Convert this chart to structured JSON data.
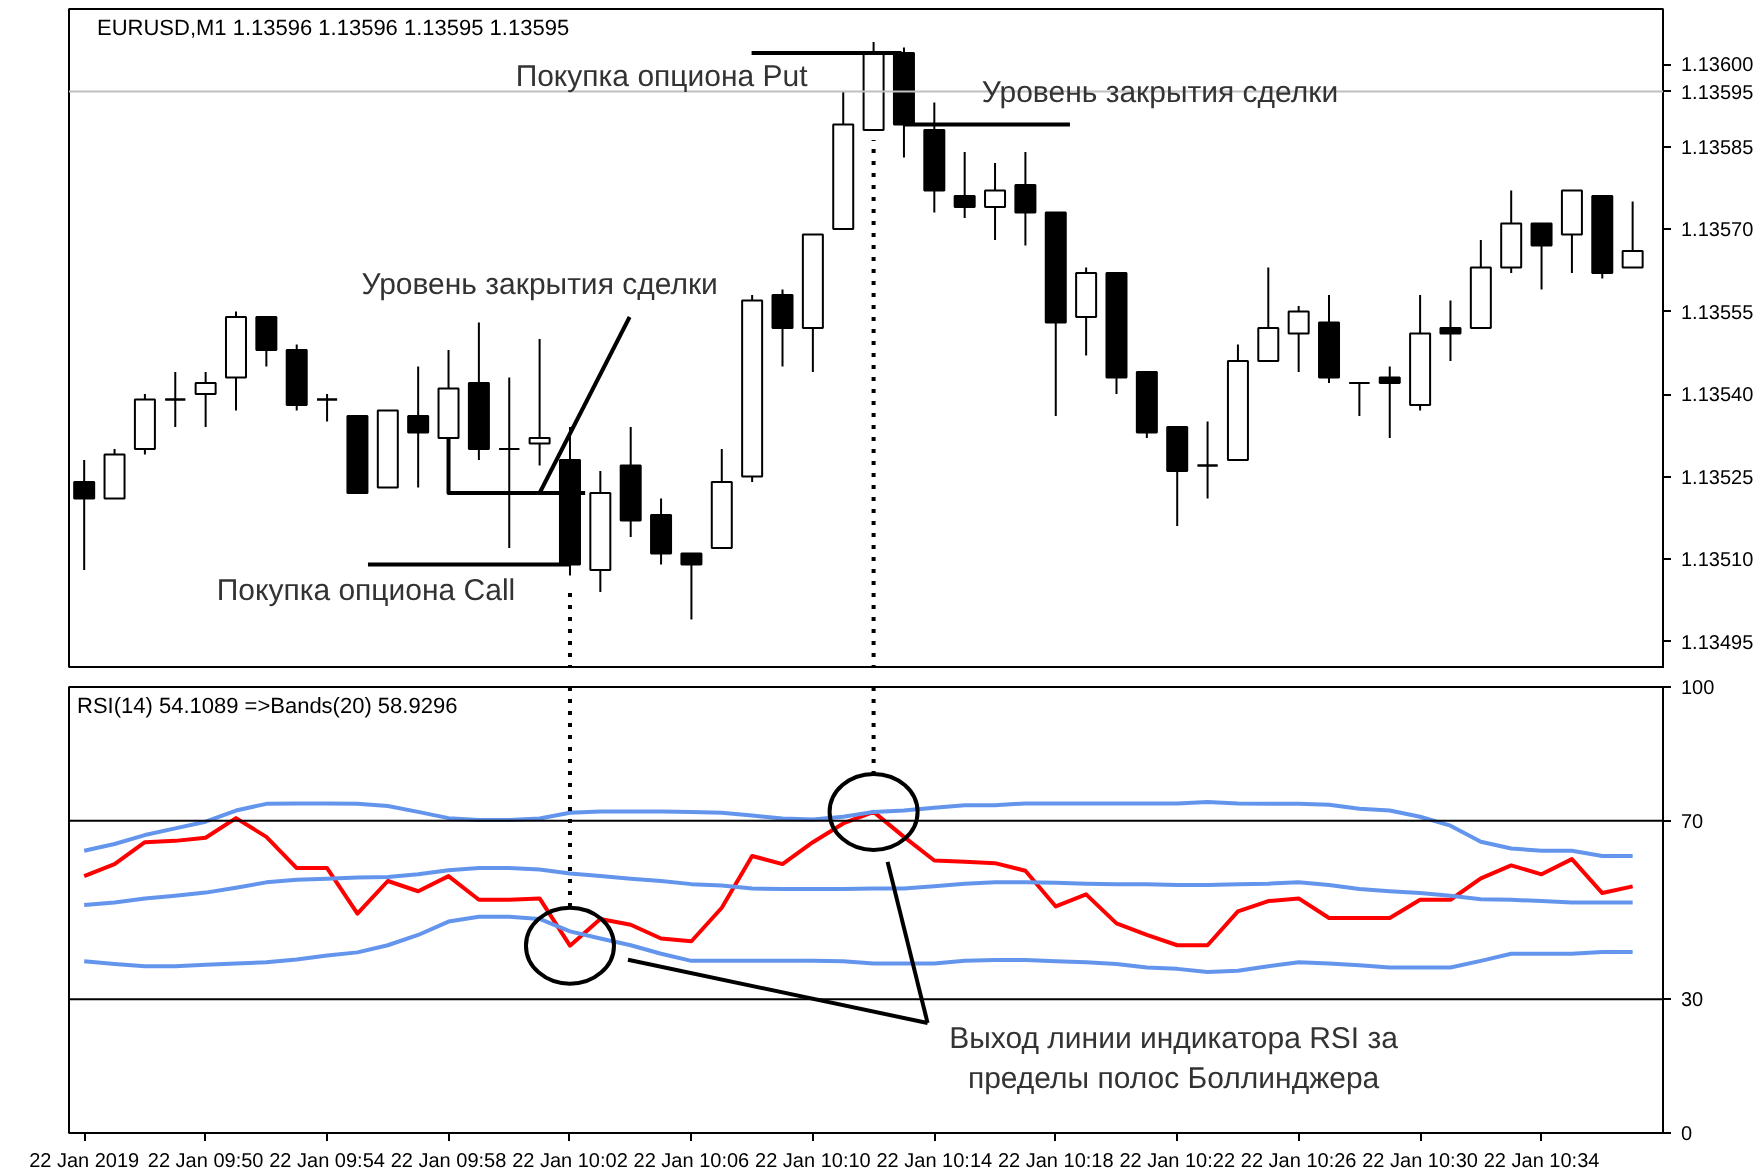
{
  "chart_data": [
    {
      "type": "candlestick",
      "title": "EURUSD,M1  1.13596 1.13596 1.13595 1.13595",
      "x": [
        "2019-01-22T09:46",
        "2019-01-22T09:47",
        "2019-01-22T09:48",
        "2019-01-22T09:49",
        "2019-01-22T09:50",
        "2019-01-22T09:51",
        "2019-01-22T09:52",
        "2019-01-22T09:53",
        "2019-01-22T09:54",
        "2019-01-22T09:55",
        "2019-01-22T09:56",
        "2019-01-22T09:57",
        "2019-01-22T09:58",
        "2019-01-22T09:59",
        "2019-01-22T10:00",
        "2019-01-22T10:01",
        "2019-01-22T10:02",
        "2019-01-22T10:03",
        "2019-01-22T10:04",
        "2019-01-22T10:05",
        "2019-01-22T10:06",
        "2019-01-22T10:07",
        "2019-01-22T10:08",
        "2019-01-22T10:09",
        "2019-01-22T10:10",
        "2019-01-22T10:11",
        "2019-01-22T10:12",
        "2019-01-22T10:13",
        "2019-01-22T10:14",
        "2019-01-22T10:15",
        "2019-01-22T10:16",
        "2019-01-22T10:17",
        "2019-01-22T10:18",
        "2019-01-22T10:19",
        "2019-01-22T10:20",
        "2019-01-22T10:21",
        "2019-01-22T10:22",
        "2019-01-22T10:23",
        "2019-01-22T10:24",
        "2019-01-22T10:25",
        "2019-01-22T10:26",
        "2019-01-22T10:27",
        "2019-01-22T10:28",
        "2019-01-22T10:29",
        "2019-01-22T10:30",
        "2019-01-22T10:31",
        "2019-01-22T10:32",
        "2019-01-22T10:33",
        "2019-01-22T10:34",
        "2019-01-22T10:35",
        "2019-01-22T10:36",
        "2019-01-22T10:37"
      ],
      "xlim": [
        "2019-01-22T09:45:30",
        "2019-01-22T10:38"
      ],
      "ylim": [
        1.1349,
        1.1361
      ],
      "yticks": [
        {
          "value": 1.13495,
          "label": "1.13495"
        },
        {
          "value": 1.1351,
          "label": "1.13510"
        },
        {
          "value": 1.13525,
          "label": "1.13525"
        },
        {
          "value": 1.1354,
          "label": "1.13540"
        },
        {
          "value": 1.13555,
          "label": "1.13555"
        },
        {
          "value": 1.1357,
          "label": "1.13570"
        },
        {
          "value": 1.13585,
          "label": "1.13585"
        },
        {
          "value": 1.136,
          "label": "1.13600"
        }
      ],
      "tick_labels": "y",
      "series": [
        {
          "type": "line",
          "color": "#000000",
          "x": [
            "2019-01-22T09:58",
            "2019-01-22T09:58",
            "2019-01-22T10:02:30"
          ],
          "values": [
            1.13532,
            1.13522,
            1.13522
          ]
        }
      ],
      "ohlc": [
        [
          1.13524,
          1.13528,
          1.13508,
          1.13521
        ],
        [
          1.13521,
          1.1353,
          1.13521,
          1.13529
        ],
        [
          1.1353,
          1.1354,
          1.13529,
          1.13539
        ],
        [
          1.13539,
          1.13544,
          1.13534,
          1.13539
        ],
        [
          1.1354,
          1.13544,
          1.13534,
          1.13542
        ],
        [
          1.13543,
          1.13555,
          1.13537,
          1.13554
        ],
        [
          1.13554,
          1.13554,
          1.13545,
          1.13548
        ],
        [
          1.13548,
          1.13549,
          1.13537,
          1.13538
        ],
        [
          1.13539,
          1.1354,
          1.13535,
          1.13539
        ],
        [
          1.13536,
          1.13536,
          1.13522,
          1.13522
        ],
        [
          1.13523,
          1.13537,
          1.13523,
          1.13537
        ],
        [
          1.13536,
          1.13545,
          1.13523,
          1.13533
        ],
        [
          1.13532,
          1.13548,
          1.13532,
          1.13541
        ],
        [
          1.13542,
          1.13553,
          1.13528,
          1.1353
        ],
        [
          1.1353,
          1.13543,
          1.13512,
          1.1353
        ],
        [
          1.13531,
          1.1355,
          1.13527,
          1.13532
        ],
        [
          1.13528,
          1.13534,
          1.13507,
          1.13509
        ],
        [
          1.13508,
          1.13526,
          1.13504,
          1.13522
        ],
        [
          1.13527,
          1.13534,
          1.13514,
          1.13517
        ],
        [
          1.13518,
          1.13521,
          1.13509,
          1.13511
        ],
        [
          1.13511,
          1.13511,
          1.13499,
          1.13509
        ],
        [
          1.13512,
          1.1353,
          1.13512,
          1.13524
        ],
        [
          1.13525,
          1.13558,
          1.13524,
          1.13557
        ],
        [
          1.13558,
          1.13559,
          1.13545,
          1.13552
        ],
        [
          1.13552,
          1.13569,
          1.13544,
          1.13569
        ],
        [
          1.1357,
          1.13595,
          1.1357,
          1.13589
        ],
        [
          1.13588,
          1.13604,
          1.13588,
          1.13602
        ],
        [
          1.13602,
          1.13603,
          1.13583,
          1.13589
        ],
        [
          1.13588,
          1.13593,
          1.13573,
          1.13577
        ],
        [
          1.13576,
          1.13584,
          1.13572,
          1.13574
        ],
        [
          1.13574,
          1.13582,
          1.13568,
          1.13577
        ],
        [
          1.13578,
          1.13584,
          1.13567,
          1.13573
        ],
        [
          1.13573,
          1.13573,
          1.13536,
          1.13553
        ],
        [
          1.13554,
          1.13563,
          1.13547,
          1.13562
        ],
        [
          1.13562,
          1.13562,
          1.1354,
          1.13543
        ],
        [
          1.13544,
          1.13544,
          1.13532,
          1.13533
        ],
        [
          1.13534,
          1.13534,
          1.13516,
          1.13526
        ],
        [
          1.13527,
          1.13535,
          1.13521,
          1.13527
        ],
        [
          1.13528,
          1.13549,
          1.13528,
          1.13546
        ],
        [
          1.13546,
          1.13563,
          1.13546,
          1.13552
        ],
        [
          1.13551,
          1.13556,
          1.13544,
          1.13555
        ],
        [
          1.13553,
          1.13558,
          1.13542,
          1.13543
        ],
        [
          1.13542,
          1.13542,
          1.13536,
          1.13542
        ],
        [
          1.13543,
          1.13545,
          1.13532,
          1.13542
        ],
        [
          1.13538,
          1.13558,
          1.13537,
          1.13551
        ],
        [
          1.13552,
          1.13557,
          1.13546,
          1.13551
        ],
        [
          1.13552,
          1.13568,
          1.13552,
          1.13563
        ],
        [
          1.13563,
          1.13577,
          1.13562,
          1.13571
        ],
        [
          1.13571,
          1.13571,
          1.13559,
          1.13567
        ],
        [
          1.13569,
          1.13577,
          1.13562,
          1.13577
        ],
        [
          1.13576,
          1.13576,
          1.13561,
          1.13562
        ],
        [
          1.13563,
          1.13575,
          1.13563,
          1.13566
        ]
      ],
      "ref_lines": [
        {
          "axis": "y",
          "value": 1.13595,
          "label": "1.13595",
          "color": "#c0c0c0"
        },
        {
          "axis": "x",
          "value": "2019-01-22T10:02",
          "line_style": "dotted",
          "color": "#000000"
        },
        {
          "axis": "x",
          "value": "2019-01-22T10:12",
          "line_style": "dotted",
          "color": "#000000"
        }
      ],
      "annotations": [
        {
          "text": "Покупка опциона Put",
          "x": "2019-01-22T10:12",
          "y": 1.13602
        },
        {
          "text": "Уровень закрытия сделки",
          "x": "2019-01-22T10:13",
          "y": 1.13589
        },
        {
          "text": "Уровень закрытия сделки",
          "x": "2019-01-22T10:01",
          "y": 1.13522
        },
        {
          "text": "Покупка опциона Call",
          "x": "2019-01-22T10:02",
          "y": 1.13509
        }
      ]
    },
    {
      "type": "line",
      "title": "RSI(14) 54.1089  =>Bands(20) 58.9296",
      "x": [
        "2019-01-22T09:46",
        "2019-01-22T09:47",
        "2019-01-22T09:48",
        "2019-01-22T09:49",
        "2019-01-22T09:50",
        "2019-01-22T09:51",
        "2019-01-22T09:52",
        "2019-01-22T09:53",
        "2019-01-22T09:54",
        "2019-01-22T09:55",
        "2019-01-22T09:56",
        "2019-01-22T09:57",
        "2019-01-22T09:58",
        "2019-01-22T09:59",
        "2019-01-22T10:00",
        "2019-01-22T10:01",
        "2019-01-22T10:02",
        "2019-01-22T10:03",
        "2019-01-22T10:04",
        "2019-01-22T10:05",
        "2019-01-22T10:06",
        "2019-01-22T10:07",
        "2019-01-22T10:08",
        "2019-01-22T10:09",
        "2019-01-22T10:10",
        "2019-01-22T10:11",
        "2019-01-22T10:12",
        "2019-01-22T10:13",
        "2019-01-22T10:14",
        "2019-01-22T10:15",
        "2019-01-22T10:16",
        "2019-01-22T10:17",
        "2019-01-22T10:18",
        "2019-01-22T10:19",
        "2019-01-22T10:20",
        "2019-01-22T10:21",
        "2019-01-22T10:22",
        "2019-01-22T10:23",
        "2019-01-22T10:24",
        "2019-01-22T10:25",
        "2019-01-22T10:26",
        "2019-01-22T10:27",
        "2019-01-22T10:28",
        "2019-01-22T10:29",
        "2019-01-22T10:30",
        "2019-01-22T10:31",
        "2019-01-22T10:32",
        "2019-01-22T10:33",
        "2019-01-22T10:34",
        "2019-01-22T10:35",
        "2019-01-22T10:36",
        "2019-01-22T10:37"
      ],
      "xlim": [
        "2019-01-22T09:45:30",
        "2019-01-22T10:38"
      ],
      "xticks": [
        {
          "value": "2019-01-22T09:46",
          "label": "22 Jan 2019"
        },
        {
          "value": "2019-01-22T09:50",
          "label": "22 Jan 09:50"
        },
        {
          "value": "2019-01-22T09:54",
          "label": "22 Jan 09:54"
        },
        {
          "value": "2019-01-22T09:58",
          "label": "22 Jan 09:58"
        },
        {
          "value": "2019-01-22T10:02",
          "label": "22 Jan 10:02"
        },
        {
          "value": "2019-01-22T10:06",
          "label": "22 Jan 10:06"
        },
        {
          "value": "2019-01-22T10:10",
          "label": "22 Jan 10:10"
        },
        {
          "value": "2019-01-22T10:14",
          "label": "22 Jan 10:14"
        },
        {
          "value": "2019-01-22T10:18",
          "label": "22 Jan 10:18"
        },
        {
          "value": "2019-01-22T10:22",
          "label": "22 Jan 10:22"
        },
        {
          "value": "2019-01-22T10:26",
          "label": "22 Jan 10:26"
        },
        {
          "value": "2019-01-22T10:30",
          "label": "22 Jan 10:30"
        },
        {
          "value": "2019-01-22T10:34",
          "label": "22 Jan 10:34"
        }
      ],
      "ylim": [
        0,
        100
      ],
      "yticks": [
        0,
        100
      ],
      "series": [
        {
          "color": "#ff0000",
          "values": [
            57.6,
            60.3,
            65.2,
            65.5,
            66.2,
            70.6,
            66.4,
            59.4,
            59.4,
            49.2,
            56.5,
            54.2,
            57.6,
            52.3,
            52.3,
            52.6,
            42.0,
            48.0,
            46.7,
            43.6,
            43.0,
            50.5,
            62.1,
            60.3,
            65.2,
            69.4,
            72.0,
            66.4,
            61.1,
            60.8,
            60.5,
            58.8,
            50.8,
            53.5,
            47.0,
            44.4,
            42.1,
            42.1,
            49.7,
            52.0,
            52.6,
            48.2,
            48.2,
            48.2,
            52.3,
            52.3,
            57.1,
            60.0,
            58.0,
            61.4,
            53.8,
            55.3
          ]
        },
        {
          "color": "#6495ed",
          "values": [
            63.3,
            64.8,
            66.8,
            68.3,
            69.8,
            72.3,
            73.8,
            73.9,
            73.9,
            73.8,
            73.3,
            72.0,
            70.6,
            70.2,
            70.2,
            70.5,
            71.8,
            72.1,
            72.1,
            72.1,
            72.0,
            71.8,
            71.2,
            70.5,
            70.3,
            70.9,
            72.0,
            72.3,
            72.9,
            73.5,
            73.5,
            73.9,
            73.9,
            73.9,
            73.9,
            73.9,
            73.9,
            74.2,
            73.9,
            73.8,
            73.8,
            73.6,
            72.7,
            72.3,
            70.9,
            68.9,
            65.3,
            63.8,
            63.3,
            63.3,
            62.1,
            62.1
          ]
        },
        {
          "color": "#6495ed",
          "values": [
            51.1,
            51.7,
            52.6,
            53.2,
            53.9,
            55.0,
            56.2,
            56.8,
            57.0,
            57.3,
            57.4,
            58.0,
            58.9,
            59.4,
            59.4,
            59.1,
            58.2,
            57.6,
            57.0,
            56.5,
            55.8,
            55.5,
            54.8,
            54.7,
            54.7,
            54.7,
            54.8,
            54.8,
            55.3,
            55.9,
            56.2,
            56.2,
            56.1,
            55.9,
            55.8,
            55.8,
            55.6,
            55.6,
            55.8,
            55.9,
            56.2,
            55.6,
            54.7,
            54.2,
            53.8,
            53.2,
            52.4,
            52.3,
            52.0,
            51.7,
            51.7,
            51.7
          ]
        },
        {
          "color": "#6495ed",
          "values": [
            38.5,
            37.9,
            37.4,
            37.4,
            37.7,
            38.0,
            38.3,
            38.9,
            39.8,
            40.5,
            42.1,
            44.4,
            47.4,
            48.5,
            48.5,
            48.0,
            45.2,
            43.6,
            42.1,
            40.2,
            38.6,
            38.6,
            38.6,
            38.6,
            38.6,
            38.5,
            38.0,
            38.0,
            38.0,
            38.6,
            38.8,
            38.8,
            38.5,
            38.3,
            37.9,
            37.1,
            36.8,
            36.1,
            36.4,
            37.4,
            38.3,
            38.0,
            37.6,
            37.1,
            37.1,
            37.1,
            38.6,
            40.2,
            40.2,
            40.2,
            40.6,
            40.6
          ]
        }
      ],
      "ref_lines": [
        {
          "axis": "y",
          "value": 70,
          "label": "70",
          "color": "#000000"
        },
        {
          "axis": "y",
          "value": 30,
          "label": "30",
          "color": "#000000"
        },
        {
          "axis": "x",
          "value": "2019-01-22T10:02",
          "line_style": "dotted",
          "color": "#000000"
        },
        {
          "axis": "x",
          "value": "2019-01-22T10:12",
          "line_style": "dotted",
          "color": "#000000"
        }
      ],
      "annotations": [
        "Выход линии индикатора RSI за\nпределы полос Боллинджера"
      ]
    }
  ]
}
